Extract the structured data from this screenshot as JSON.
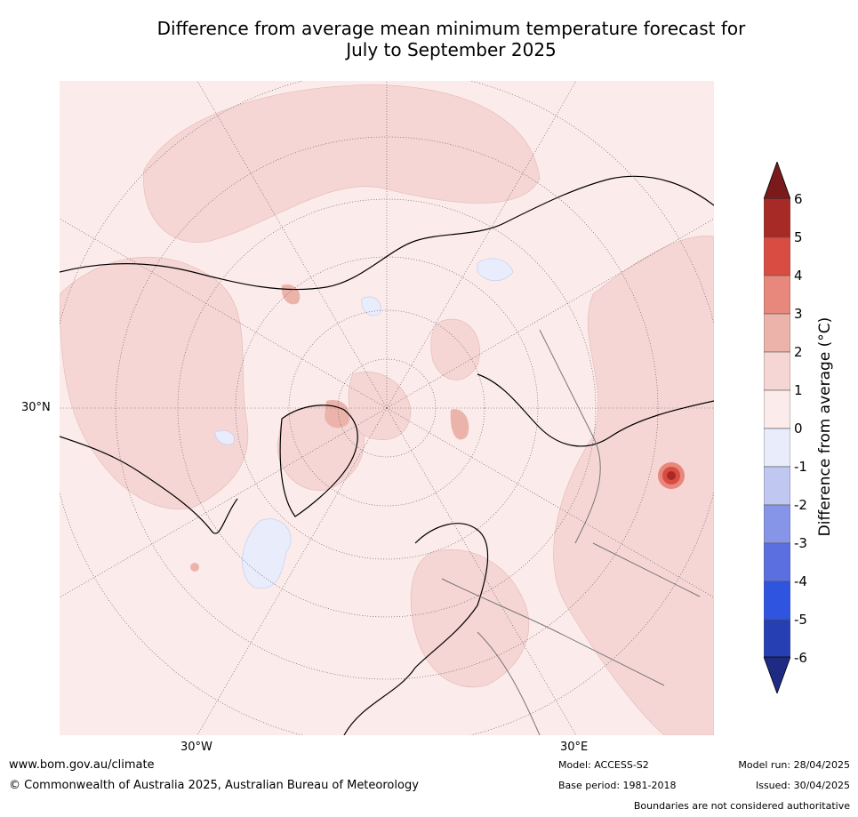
{
  "title": "Difference from average mean minimum temperature forecast for\nJuly to September 2025",
  "map": {
    "projection": "north polar stereographic",
    "graticule_labels": {
      "lat": "30°N",
      "lon_west": "30°W",
      "lon_east": "30°E"
    }
  },
  "colorbar": {
    "label": "Difference from average (°C)",
    "ticks": [
      "6",
      "5",
      "4",
      "3",
      "2",
      "1",
      "0",
      "-1",
      "-2",
      "-3",
      "-4",
      "-5",
      "-6"
    ],
    "colors": [
      "#7a1a1a",
      "#a82a26",
      "#d94c42",
      "#e8877b",
      "#ecb3ab",
      "#f5d6d4",
      "#fbebea",
      "#e8ecfb",
      "#c0c8f2",
      "#8795e8",
      "#5b6fe0",
      "#2f54e0",
      "#263fb2",
      "#1f2b82"
    ]
  },
  "footer": {
    "website": "www.bom.gov.au/climate",
    "copyright": "© Commonwealth of Australia 2025, Australian Bureau of Meteorology",
    "model": "Model: ACCESS-S2",
    "base_period": "Base period: 1981-2018",
    "model_run": "Model run: 28/04/2025",
    "issued": "Issued: 30/04/2025",
    "disclaimer": "Boundaries are not considered authoritative"
  }
}
